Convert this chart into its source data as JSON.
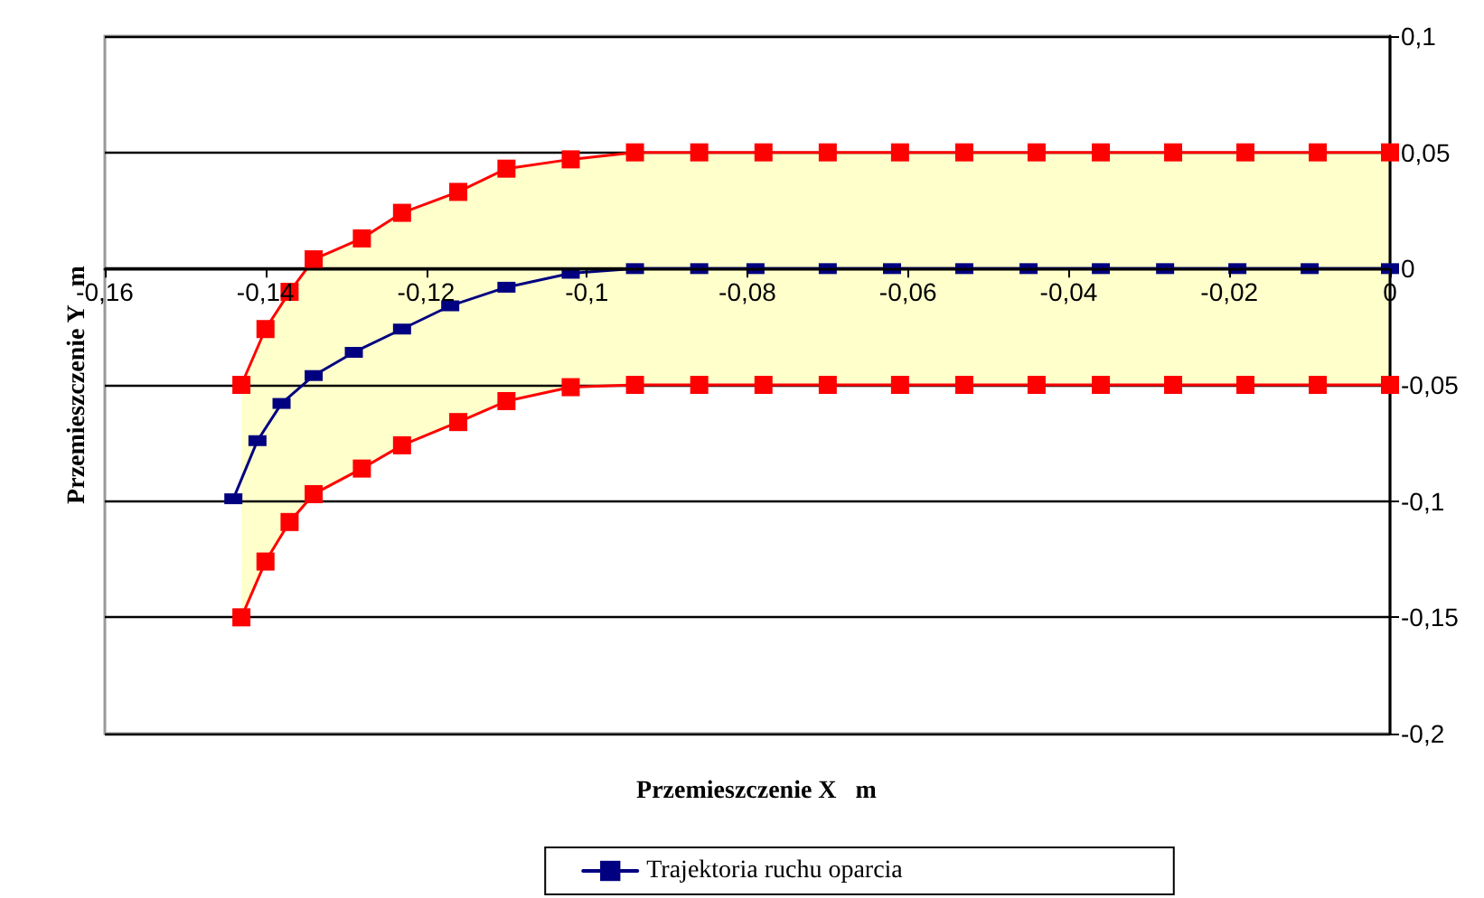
{
  "chart_data": {
    "type": "line",
    "xlabel": "Przemieszczenie X   m",
    "ylabel": "Przemieszczenie Y   m",
    "xlim": [
      -0.16,
      0
    ],
    "ylim": [
      -0.2,
      0.1
    ],
    "xticks": [
      {
        "value": -0.16,
        "label": "-0,16"
      },
      {
        "value": -0.14,
        "label": "-0,14"
      },
      {
        "value": -0.12,
        "label": "-0,12"
      },
      {
        "value": -0.1,
        "label": "-0,1"
      },
      {
        "value": -0.08,
        "label": "-0,08"
      },
      {
        "value": -0.06,
        "label": "-0,06"
      },
      {
        "value": -0.04,
        "label": "-0,04"
      },
      {
        "value": -0.02,
        "label": "-0,02"
      },
      0
    ],
    "yticks": [
      {
        "value": -0.2,
        "label": "-0,2"
      },
      {
        "value": -0.15,
        "label": "-0,15"
      },
      {
        "value": -0.1,
        "label": "-0,1"
      },
      {
        "value": -0.05,
        "label": "-0,05"
      },
      0,
      {
        "value": 0.05,
        "label": "0,05"
      },
      {
        "value": 0.1,
        "label": "0,1"
      }
    ],
    "grid": "y",
    "legend": "bottom",
    "marker": "square",
    "line_style": "solid",
    "series": [
      {
        "color": "#ff0000",
        "x": [
          -0.143,
          -0.14,
          -0.137,
          -0.134,
          -0.128,
          -0.123,
          -0.116,
          -0.11,
          -0.102,
          -0.094,
          -0.086,
          -0.078,
          -0.07,
          -0.061,
          -0.053,
          -0.044,
          -0.036,
          -0.027,
          -0.018,
          -0.009,
          0
        ],
        "values": [
          -0.05,
          -0.026,
          -0.01,
          0.004,
          0.013,
          0.024,
          0.033,
          0.043,
          0.047,
          0.05,
          0.05,
          0.05,
          0.05,
          0.05,
          0.05,
          0.05,
          0.05,
          0.05,
          0.05,
          0.05,
          0.05
        ],
        "lower": [
          -0.15,
          -0.126,
          -0.109,
          -0.097,
          -0.086,
          -0.076,
          -0.066,
          -0.057,
          -0.051,
          -0.05,
          -0.05,
          -0.05,
          -0.05,
          -0.05,
          -0.05,
          -0.05,
          -0.05,
          -0.05,
          -0.05,
          -0.05,
          -0.05
        ],
        "upper": [
          -0.05,
          -0.026,
          -0.01,
          0.004,
          0.013,
          0.024,
          0.033,
          0.043,
          0.047,
          0.05,
          0.05,
          0.05,
          0.05,
          0.05,
          0.05,
          0.05,
          0.05,
          0.05,
          0.05,
          0.05,
          0.05
        ]
      },
      {
        "color": "#ff0000",
        "x": [
          -0.143,
          -0.14,
          -0.137,
          -0.134,
          -0.128,
          -0.123,
          -0.116,
          -0.11,
          -0.102,
          -0.094,
          -0.086,
          -0.078,
          -0.07,
          -0.061,
          -0.053,
          -0.044,
          -0.036,
          -0.027,
          -0.018,
          -0.009,
          0
        ],
        "values": [
          -0.15,
          -0.126,
          -0.109,
          -0.097,
          -0.086,
          -0.076,
          -0.066,
          -0.057,
          -0.051,
          -0.05,
          -0.05,
          -0.05,
          -0.05,
          -0.05,
          -0.05,
          -0.05,
          -0.05,
          -0.05,
          -0.05,
          -0.05,
          -0.05
        ]
      },
      {
        "name": "Trajektoria ruchu oparcia",
        "color": "#000080",
        "x": [
          -0.144,
          -0.141,
          -0.138,
          -0.134,
          -0.129,
          -0.123,
          -0.117,
          -0.11,
          -0.102,
          -0.094,
          -0.086,
          -0.079,
          -0.07,
          -0.062,
          -0.053,
          -0.045,
          -0.036,
          -0.028,
          -0.019,
          -0.01,
          0
        ],
        "values": [
          -0.099,
          -0.074,
          -0.058,
          -0.046,
          -0.036,
          -0.026,
          -0.016,
          -0.008,
          -0.002,
          0,
          0,
          0,
          0,
          0,
          0,
          0,
          0,
          0,
          0,
          0,
          0
        ]
      }
    ]
  }
}
